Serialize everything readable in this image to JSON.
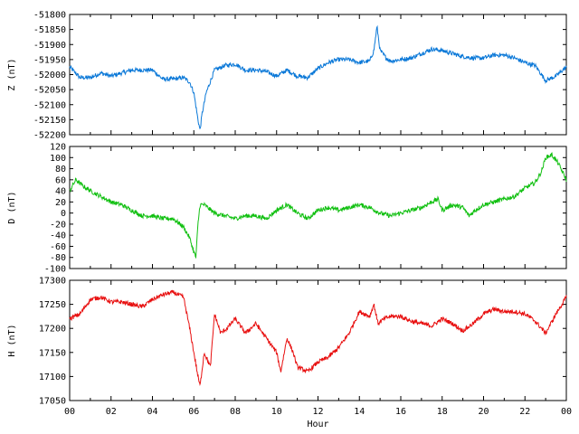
{
  "chart_data": [
    {
      "type": "line",
      "ylabel": "Z (nT)",
      "ylim": [
        -52200,
        -51800
      ],
      "yticks": [
        -51800,
        -51850,
        -51900,
        -51950,
        -52000,
        -52050,
        -52100,
        -52150,
        -52200
      ],
      "color": "#0a78d8",
      "series": [
        {
          "x": [
            0,
            0.5,
            1,
            1.5,
            2,
            2.5,
            3,
            3.5,
            4,
            4.5,
            5,
            5.5,
            5.8,
            6,
            6.2,
            6.3,
            6.4,
            6.6,
            7,
            7.5,
            8,
            8.5,
            9,
            9.5,
            10,
            10.5,
            11,
            11.5,
            12,
            12.5,
            13,
            13.5,
            14,
            14.5,
            14.7,
            14.85,
            15,
            15.3,
            15.5,
            16,
            16.5,
            17,
            17.5,
            18,
            18.5,
            19,
            19.5,
            20,
            20.5,
            21,
            21.5,
            22,
            22.5,
            23,
            23.5,
            24
          ],
          "y": [
            -51975,
            -52010,
            -52010,
            -51995,
            -52005,
            -51995,
            -51985,
            -51985,
            -51985,
            -52015,
            -52015,
            -52010,
            -52025,
            -52060,
            -52150,
            -52185,
            -52130,
            -52060,
            -51985,
            -51970,
            -51965,
            -51985,
            -51985,
            -51990,
            -52005,
            -51985,
            -52005,
            -52010,
            -51980,
            -51960,
            -51950,
            -51950,
            -51960,
            -51955,
            -51920,
            -51840,
            -51920,
            -51945,
            -51955,
            -51950,
            -51945,
            -51930,
            -51915,
            -51920,
            -51930,
            -51940,
            -51945,
            -51945,
            -51935,
            -51935,
            -51945,
            -51960,
            -51970,
            -52020,
            -52005,
            -51975
          ]
        }
      ]
    },
    {
      "type": "line",
      "ylabel": "D (nT)",
      "ylim": [
        -100,
        120
      ],
      "yticks": [
        120,
        100,
        80,
        60,
        40,
        20,
        0,
        -20,
        -40,
        -60,
        -80,
        -100
      ],
      "color": "#12c012",
      "series": [
        {
          "x": [
            0,
            0.3,
            0.6,
            1,
            1.5,
            2,
            2.5,
            3,
            3.5,
            4,
            4.5,
            5,
            5.5,
            5.8,
            6,
            6.1,
            6.2,
            6.3,
            6.5,
            7,
            7.5,
            8,
            8.5,
            9,
            9.5,
            10,
            10.5,
            11,
            11.5,
            12,
            12.5,
            13,
            13.5,
            14,
            14.5,
            15,
            15.5,
            16,
            16.5,
            17,
            17.5,
            17.8,
            18,
            18.5,
            19,
            19.3,
            19.6,
            20,
            20.5,
            21,
            21.5,
            22,
            22.5,
            22.8,
            23,
            23.3,
            23.6,
            24
          ],
          "y": [
            40,
            60,
            50,
            40,
            30,
            20,
            15,
            5,
            -5,
            -5,
            -10,
            -10,
            -25,
            -45,
            -70,
            -80,
            -20,
            15,
            15,
            0,
            -5,
            -10,
            -5,
            -5,
            -10,
            5,
            15,
            0,
            -10,
            5,
            10,
            5,
            10,
            15,
            10,
            0,
            -5,
            0,
            5,
            10,
            20,
            25,
            5,
            15,
            10,
            -5,
            5,
            15,
            20,
            25,
            30,
            45,
            55,
            75,
            100,
            105,
            90,
            60
          ]
        }
      ]
    },
    {
      "type": "line",
      "ylabel": "H (nT)",
      "xlabel": "Hour",
      "ylim": [
        17050,
        17300
      ],
      "yticks": [
        17300,
        17250,
        17200,
        17150,
        17100,
        17050
      ],
      "xlim": [
        0,
        24
      ],
      "xticks": [
        "00",
        "02",
        "04",
        "06",
        "08",
        "10",
        "12",
        "14",
        "16",
        "18",
        "20",
        "22",
        "00"
      ],
      "color": "#e81010",
      "series": [
        {
          "x": [
            0,
            0.5,
            1,
            1.5,
            2,
            2.5,
            3,
            3.5,
            4,
            4.5,
            5,
            5.5,
            5.8,
            6,
            6.2,
            6.3,
            6.5,
            6.8,
            7,
            7.3,
            7.6,
            8,
            8.5,
            9,
            9.5,
            10,
            10.2,
            10.5,
            10.8,
            11,
            11.5,
            12,
            12.5,
            13,
            13.5,
            14,
            14.5,
            14.7,
            14.9,
            15.2,
            15.5,
            16,
            16.5,
            17,
            17.5,
            18,
            18.5,
            19,
            19.5,
            20,
            20.5,
            21,
            21.5,
            22,
            22.5,
            23,
            23.5,
            24
          ],
          "y": [
            17220,
            17230,
            17260,
            17265,
            17255,
            17255,
            17250,
            17245,
            17260,
            17270,
            17275,
            17265,
            17200,
            17150,
            17100,
            17080,
            17150,
            17120,
            17230,
            17190,
            17200,
            17220,
            17190,
            17210,
            17180,
            17150,
            17110,
            17180,
            17150,
            17120,
            17110,
            17130,
            17140,
            17160,
            17190,
            17235,
            17225,
            17250,
            17210,
            17220,
            17225,
            17225,
            17215,
            17210,
            17205,
            17220,
            17210,
            17195,
            17210,
            17230,
            17240,
            17235,
            17235,
            17230,
            17215,
            17190,
            17230,
            17265
          ]
        }
      ]
    }
  ]
}
